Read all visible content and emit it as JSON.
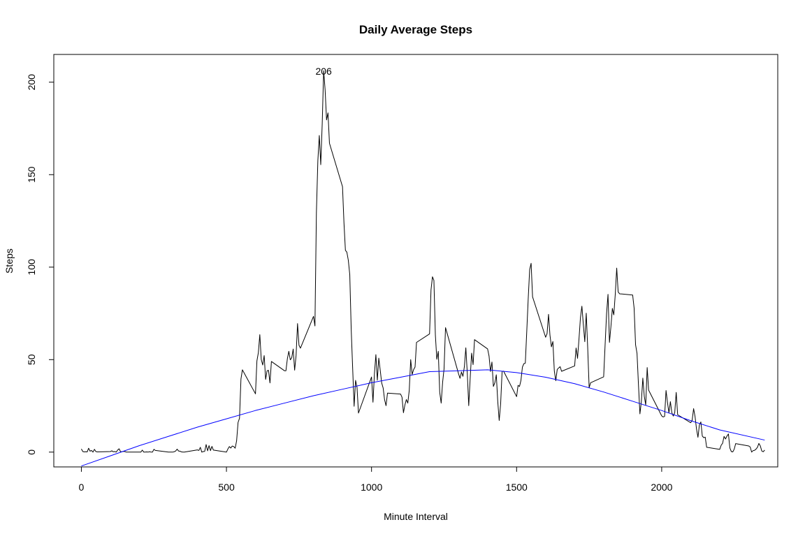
{
  "chart_data": {
    "type": "line",
    "title": "Daily Average Steps",
    "xlabel": "Minute Interval",
    "ylabel": "Steps",
    "xlim": [
      -95,
      2400
    ],
    "ylim": [
      -8,
      215
    ],
    "x_ticks": [
      0,
      500,
      1000,
      1500,
      2000
    ],
    "y_ticks": [
      0,
      50,
      100,
      150,
      200
    ],
    "grid": false,
    "annotations": [
      {
        "text": "206",
        "x": 835,
        "y": 206
      }
    ],
    "series": [
      {
        "color": "#000000",
        "points": [
          [
            0,
            1.7
          ],
          [
            5,
            0.3
          ],
          [
            10,
            0.1
          ],
          [
            15,
            0.2
          ],
          [
            20,
            0.1
          ],
          [
            25,
            2.1
          ],
          [
            30,
            0.5
          ],
          [
            35,
            0.9
          ],
          [
            40,
            0
          ],
          [
            45,
            1.5
          ],
          [
            50,
            0.3
          ],
          [
            55,
            0.1
          ],
          [
            100,
            0.3
          ],
          [
            105,
            0.7
          ],
          [
            110,
            0.2
          ],
          [
            115,
            0.3
          ],
          [
            120,
            0
          ],
          [
            125,
            1.1
          ],
          [
            130,
            1.8
          ],
          [
            135,
            0.2
          ],
          [
            140,
            0.2
          ],
          [
            145,
            0.4
          ],
          [
            150,
            0.3
          ],
          [
            155,
            0
          ],
          [
            200,
            0
          ],
          [
            205,
            0
          ],
          [
            210,
            1.1
          ],
          [
            215,
            0
          ],
          [
            220,
            0
          ],
          [
            225,
            0.1
          ],
          [
            230,
            0
          ],
          [
            235,
            0.2
          ],
          [
            240,
            0
          ],
          [
            245,
            0
          ],
          [
            250,
            1.5
          ],
          [
            255,
            0.9
          ],
          [
            300,
            0
          ],
          [
            305,
            0
          ],
          [
            310,
            0
          ],
          [
            315,
            0
          ],
          [
            320,
            0.2
          ],
          [
            325,
            0.6
          ],
          [
            330,
            1.6
          ],
          [
            335,
            0.6
          ],
          [
            340,
            0.5
          ],
          [
            345,
            0.1
          ],
          [
            350,
            0
          ],
          [
            355,
            0
          ],
          [
            400,
            1.2
          ],
          [
            405,
            0.9
          ],
          [
            410,
            2.6
          ],
          [
            415,
            0
          ],
          [
            420,
            0.3
          ],
          [
            425,
            0.4
          ],
          [
            430,
            4.1
          ],
          [
            435,
            0.7
          ],
          [
            440,
            3.5
          ],
          [
            445,
            0.8
          ],
          [
            450,
            3.1
          ],
          [
            455,
            1.1
          ],
          [
            500,
            0
          ],
          [
            505,
            1.7
          ],
          [
            510,
            3.0
          ],
          [
            515,
            2.2
          ],
          [
            520,
            3.3
          ],
          [
            525,
            3.0
          ],
          [
            530,
            2.1
          ],
          [
            535,
            6.1
          ],
          [
            540,
            16.0
          ],
          [
            545,
            18.3
          ],
          [
            550,
            39.5
          ],
          [
            555,
            44.5
          ],
          [
            600,
            31.5
          ],
          [
            605,
            49.3
          ],
          [
            610,
            53.8
          ],
          [
            615,
            63.5
          ],
          [
            620,
            50.0
          ],
          [
            625,
            47.1
          ],
          [
            630,
            52.2
          ],
          [
            635,
            39.3
          ],
          [
            640,
            44.0
          ],
          [
            645,
            44.2
          ],
          [
            650,
            37.4
          ],
          [
            655,
            49.0
          ],
          [
            700,
            44.0
          ],
          [
            705,
            44.0
          ],
          [
            710,
            50.5
          ],
          [
            715,
            54.5
          ],
          [
            720,
            49.9
          ],
          [
            725,
            51.0
          ],
          [
            730,
            55.7
          ],
          [
            735,
            44.3
          ],
          [
            740,
            52.3
          ],
          [
            745,
            69.5
          ],
          [
            750,
            57.8
          ],
          [
            755,
            56.2
          ],
          [
            800,
            73.4
          ],
          [
            805,
            68.2
          ],
          [
            810,
            129.4
          ],
          [
            815,
            157.5
          ],
          [
            820,
            171.2
          ],
          [
            825,
            155.4
          ],
          [
            830,
            177.3
          ],
          [
            835,
            206.2
          ],
          [
            840,
            195.9
          ],
          [
            845,
            179.6
          ],
          [
            850,
            183.4
          ],
          [
            855,
            167.0
          ],
          [
            900,
            143.5
          ],
          [
            905,
            124.0
          ],
          [
            910,
            109.1
          ],
          [
            915,
            108.1
          ],
          [
            920,
            103.7
          ],
          [
            925,
            95.97
          ],
          [
            930,
            66.2
          ],
          [
            935,
            45.2
          ],
          [
            940,
            24.8
          ],
          [
            945,
            38.8
          ],
          [
            950,
            34.98
          ],
          [
            955,
            21.1
          ],
          [
            1000,
            40.6
          ],
          [
            1005,
            26.98
          ],
          [
            1010,
            42.4
          ],
          [
            1015,
            52.7
          ],
          [
            1020,
            38.9
          ],
          [
            1025,
            50.8
          ],
          [
            1030,
            44.3
          ],
          [
            1035,
            37.4
          ],
          [
            1040,
            34.7
          ],
          [
            1045,
            28.3
          ],
          [
            1050,
            25.1
          ],
          [
            1055,
            31.9
          ],
          [
            1100,
            31.4
          ],
          [
            1105,
            29.7
          ],
          [
            1110,
            21.3
          ],
          [
            1115,
            25.5
          ],
          [
            1120,
            28.4
          ],
          [
            1125,
            26.5
          ],
          [
            1130,
            33.4
          ],
          [
            1135,
            50.0
          ],
          [
            1140,
            42.0
          ],
          [
            1145,
            44.6
          ],
          [
            1150,
            46.0
          ],
          [
            1155,
            59.3
          ],
          [
            1200,
            63.9
          ],
          [
            1205,
            87.7
          ],
          [
            1210,
            94.8
          ],
          [
            1215,
            92.8
          ],
          [
            1220,
            63.4
          ],
          [
            1225,
            50.2
          ],
          [
            1230,
            54.5
          ],
          [
            1235,
            32.4
          ],
          [
            1240,
            26.5
          ],
          [
            1245,
            37.7
          ],
          [
            1250,
            45.1
          ],
          [
            1255,
            67.3
          ],
          [
            1300,
            42.3
          ],
          [
            1305,
            39.9
          ],
          [
            1310,
            43.3
          ],
          [
            1315,
            40.98
          ],
          [
            1320,
            46.2
          ],
          [
            1325,
            56.4
          ],
          [
            1330,
            42.8
          ],
          [
            1335,
            25.1
          ],
          [
            1340,
            39.96
          ],
          [
            1345,
            53.5
          ],
          [
            1350,
            47.3
          ],
          [
            1355,
            60.8
          ],
          [
            1400,
            55.8
          ],
          [
            1405,
            51.96
          ],
          [
            1410,
            43.6
          ],
          [
            1415,
            48.7
          ],
          [
            1420,
            35.5
          ],
          [
            1425,
            37.5
          ],
          [
            1430,
            41.8
          ],
          [
            1435,
            27.5
          ],
          [
            1440,
            17.1
          ],
          [
            1445,
            26.1
          ],
          [
            1450,
            43.6
          ],
          [
            1455,
            43.8
          ],
          [
            1500,
            30.0
          ],
          [
            1505,
            36.1
          ],
          [
            1510,
            35.5
          ],
          [
            1515,
            38.8
          ],
          [
            1520,
            45.96
          ],
          [
            1525,
            47.8
          ],
          [
            1530,
            48.1
          ],
          [
            1535,
            65.3
          ],
          [
            1540,
            82.9
          ],
          [
            1545,
            98.7
          ],
          [
            1550,
            102.1
          ],
          [
            1555,
            83.96
          ],
          [
            1600,
            62.1
          ],
          [
            1605,
            64.1
          ],
          [
            1610,
            74.5
          ],
          [
            1615,
            63.2
          ],
          [
            1620,
            56.9
          ],
          [
            1625,
            59.8
          ],
          [
            1630,
            43.9
          ],
          [
            1635,
            38.6
          ],
          [
            1640,
            44.7
          ],
          [
            1645,
            45.5
          ],
          [
            1650,
            46.2
          ],
          [
            1655,
            43.7
          ],
          [
            1700,
            46.6
          ],
          [
            1705,
            56.3
          ],
          [
            1710,
            50.7
          ],
          [
            1715,
            61.2
          ],
          [
            1720,
            72.7
          ],
          [
            1725,
            78.9
          ],
          [
            1730,
            68.9
          ],
          [
            1735,
            59.7
          ],
          [
            1740,
            75.1
          ],
          [
            1745,
            56.5
          ],
          [
            1750,
            34.8
          ],
          [
            1755,
            37.5
          ],
          [
            1800,
            40.7
          ],
          [
            1805,
            58.0
          ],
          [
            1810,
            74.7
          ],
          [
            1815,
            85.3
          ],
          [
            1820,
            59.3
          ],
          [
            1825,
            67.8
          ],
          [
            1830,
            77.7
          ],
          [
            1835,
            74.2
          ],
          [
            1840,
            85.3
          ],
          [
            1845,
            99.5
          ],
          [
            1850,
            86.6
          ],
          [
            1855,
            85.6
          ],
          [
            1900,
            84.9
          ],
          [
            1905,
            77.8
          ],
          [
            1910,
            58.0
          ],
          [
            1915,
            53.4
          ],
          [
            1920,
            36.3
          ],
          [
            1925,
            20.7
          ],
          [
            1930,
            27.4
          ],
          [
            1935,
            40.0
          ],
          [
            1940,
            30.2
          ],
          [
            1945,
            25.5
          ],
          [
            1950,
            45.7
          ],
          [
            1955,
            33.5
          ],
          [
            2000,
            19.6
          ],
          [
            2005,
            19.0
          ],
          [
            2010,
            19.3
          ],
          [
            2015,
            33.3
          ],
          [
            2020,
            26.8
          ],
          [
            2025,
            21.2
          ],
          [
            2030,
            27.3
          ],
          [
            2035,
            21.3
          ],
          [
            2040,
            19.5
          ],
          [
            2045,
            21.3
          ],
          [
            2050,
            32.3
          ],
          [
            2055,
            20.2
          ],
          [
            2100,
            15.9
          ],
          [
            2105,
            17.2
          ],
          [
            2110,
            23.5
          ],
          [
            2115,
            19.2
          ],
          [
            2120,
            12.5
          ],
          [
            2125,
            8.0
          ],
          [
            2130,
            14.7
          ],
          [
            2135,
            16.3
          ],
          [
            2140,
            8.7
          ],
          [
            2145,
            7.8
          ],
          [
            2150,
            8.1
          ],
          [
            2155,
            2.6
          ],
          [
            2200,
            1.5
          ],
          [
            2205,
            3.7
          ],
          [
            2210,
            4.8
          ],
          [
            2215,
            8.5
          ],
          [
            2220,
            7.1
          ],
          [
            2225,
            8.7
          ],
          [
            2230,
            9.8
          ],
          [
            2235,
            2.2
          ],
          [
            2240,
            0.3
          ],
          [
            2245,
            0.1
          ],
          [
            2250,
            1.6
          ],
          [
            2255,
            4.6
          ],
          [
            2300,
            3.3
          ],
          [
            2305,
            2.8
          ],
          [
            2310,
            0
          ],
          [
            2315,
            0.8
          ],
          [
            2320,
            0.96
          ],
          [
            2325,
            1.6
          ],
          [
            2330,
            2.6
          ],
          [
            2335,
            4.7
          ],
          [
            2340,
            3.3
          ],
          [
            2345,
            0.6
          ],
          [
            2350,
            0.2
          ],
          [
            2355,
            1.1
          ]
        ]
      },
      {
        "color": "#0000ff",
        "points": [
          [
            0,
            -7.5
          ],
          [
            100,
            -2.0
          ],
          [
            200,
            3.5
          ],
          [
            300,
            8.5
          ],
          [
            400,
            13.5
          ],
          [
            500,
            18.0
          ],
          [
            600,
            22.5
          ],
          [
            700,
            26.5
          ],
          [
            800,
            30.5
          ],
          [
            900,
            34.0
          ],
          [
            1000,
            37.5
          ],
          [
            1100,
            40.5
          ],
          [
            1200,
            43.5
          ],
          [
            1300,
            44.0
          ],
          [
            1400,
            44.5
          ],
          [
            1500,
            43.0
          ],
          [
            1600,
            40.5
          ],
          [
            1700,
            37.0
          ],
          [
            1800,
            32.5
          ],
          [
            1900,
            27.5
          ],
          [
            2000,
            22.5
          ],
          [
            2100,
            17.0
          ],
          [
            2200,
            12.0
          ],
          [
            2355,
            6.5
          ]
        ]
      }
    ]
  }
}
